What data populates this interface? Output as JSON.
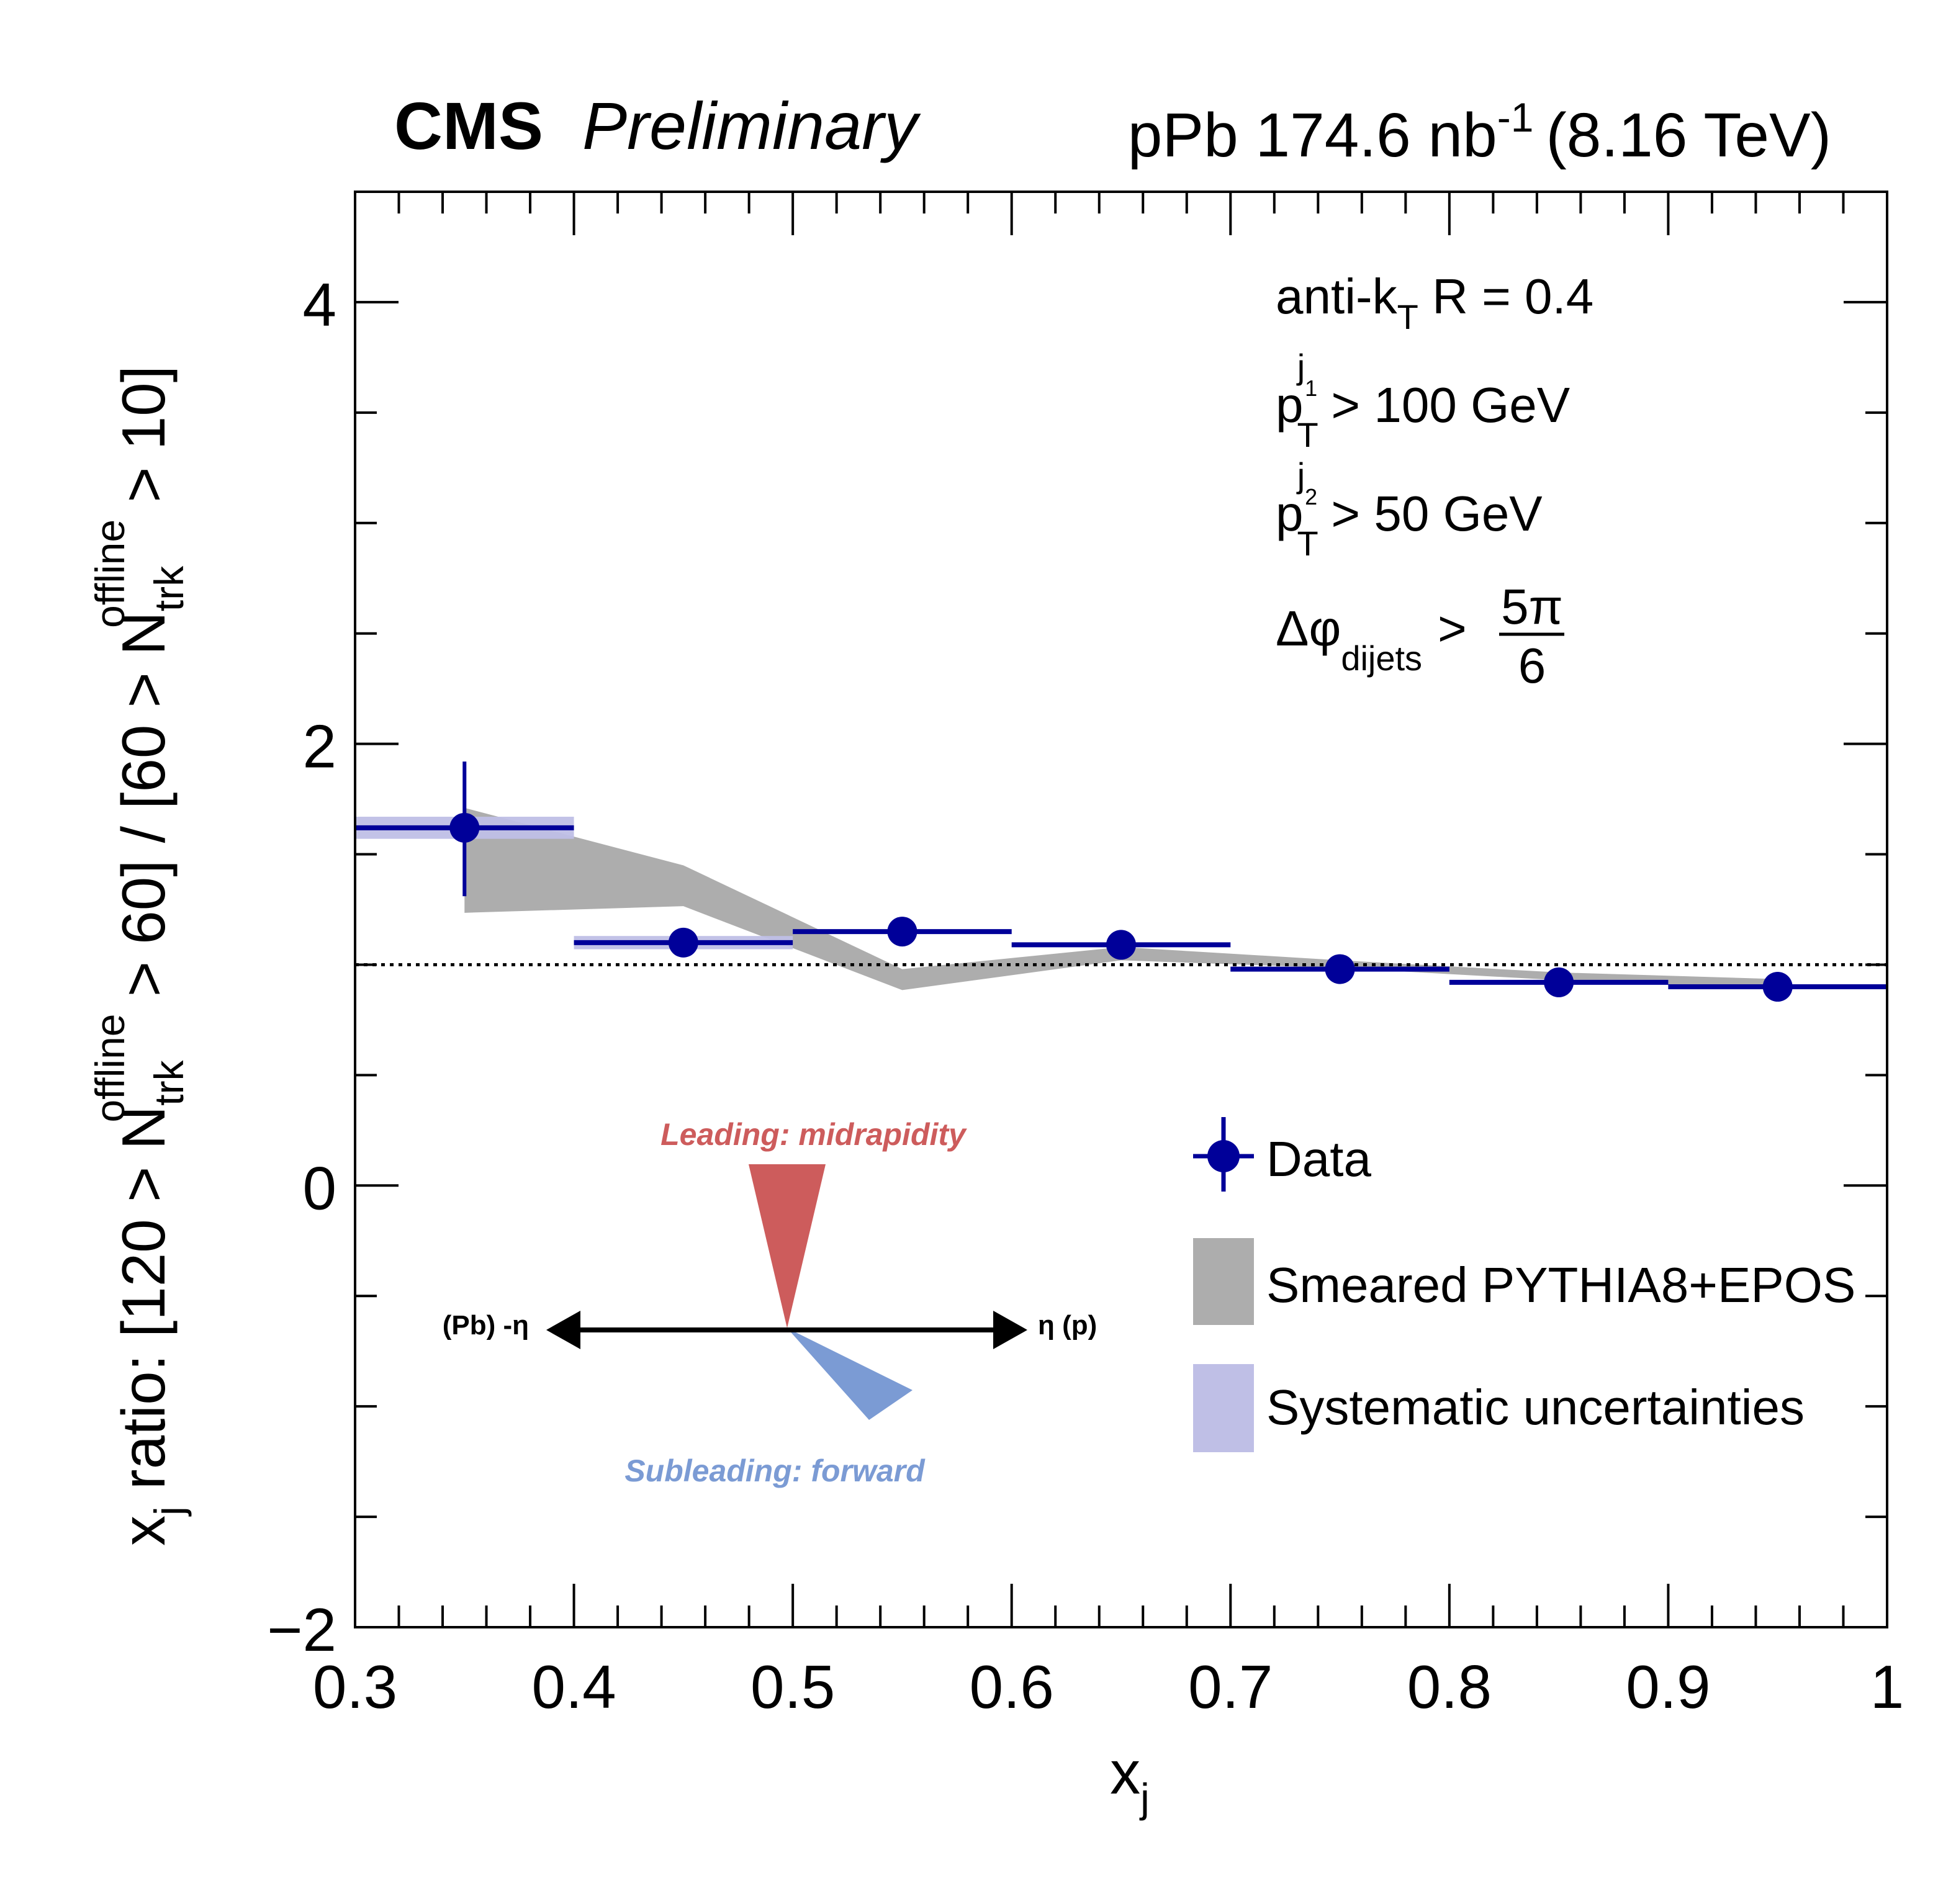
{
  "header": {
    "experiment": "CMS",
    "status": "Preliminary",
    "lumi_prefix": "pPb 174.6 nb",
    "lumi_exp": "-1",
    "energy": "(8.16 TeV)"
  },
  "annotations": {
    "algo_a": "anti-k",
    "algo_sub": "T",
    "algo_b": " R = 0.4",
    "pt1_p": "p",
    "pt1_sub": "T",
    "pt1_sup": "j",
    "pt1_supsub": "1",
    "pt1_rest": " > 100 GeV",
    "pt2_p": "p",
    "pt2_sub": "T",
    "pt2_sup": "j",
    "pt2_supsub": "2",
    "pt2_rest": " > 50 GeV",
    "dphi": "Δφ",
    "dphi_sub": "dijets",
    "dphi_gt": ">",
    "dphi_num": "5π",
    "dphi_den": "6"
  },
  "diagram": {
    "leading": "Leading: midrapidity",
    "subleading": "Subleading: forward",
    "left_label": "(Pb) -η",
    "right_label": "η (p)",
    "leading_color": "#cd5c5c",
    "subleading_color": "#7b9bd4"
  },
  "legend": {
    "placement": "bottom-right",
    "items": [
      {
        "label": "Data",
        "kind": "marker",
        "color": "#000099"
      },
      {
        "label": "Smeared PYTHIA8+EPOS",
        "kind": "band",
        "color": "#adadad"
      },
      {
        "label": "Systematic uncertainties",
        "kind": "box",
        "color": "#bfbfe6"
      }
    ]
  },
  "chart_data": {
    "type": "scatter",
    "xlabel": "x",
    "xlabel_sub": "j",
    "ylabel_parts": {
      "a": "x",
      "a_sub": "j",
      "b": " ratio: [120 > N",
      "b_sub": "trk",
      "b_sup": "offline",
      "c": " > 60] / [60 > N",
      "c_sub": "trk",
      "c_sup": "offline",
      "d": " > 10]"
    },
    "xlim": [
      0.3,
      1.0
    ],
    "ylim": [
      -2,
      4.5
    ],
    "x_ticks": [
      "0.3",
      "0.4",
      "0.5",
      "0.6",
      "0.7",
      "0.8",
      "0.9",
      "1"
    ],
    "y_ticks": [
      "−2",
      "0",
      "2",
      "4"
    ],
    "reference_line": 1.0,
    "grid": false,
    "series": [
      {
        "name": "Data",
        "type": "points",
        "color": "#000099",
        "x": [
          0.35,
          0.45,
          0.55,
          0.65,
          0.75,
          0.85,
          0.95
        ],
        "x_bin_half_width": 0.05,
        "y": [
          1.62,
          1.1,
          1.15,
          1.09,
          0.98,
          0.92,
          0.9
        ],
        "stat_err_low": [
          0.31,
          0,
          0,
          0,
          0,
          0,
          0
        ],
        "stat_err_high": [
          0.3,
          0,
          0,
          0,
          0,
          0,
          0
        ],
        "syst_err": [
          0.05,
          0.03,
          0.01,
          0.01,
          0.01,
          0.01,
          0.01
        ]
      },
      {
        "name": "Smeared PYTHIA8+EPOS",
        "type": "band",
        "color": "#adadad",
        "x": [
          0.35,
          0.45,
          0.55,
          0.65,
          0.75,
          0.85,
          0.95
        ],
        "y_high": [
          1.71,
          1.45,
          0.98,
          1.08,
          1.02,
          0.965,
          0.935
        ],
        "y_low": [
          1.235,
          1.265,
          0.885,
          1.02,
          0.985,
          0.93,
          0.89
        ]
      }
    ]
  }
}
